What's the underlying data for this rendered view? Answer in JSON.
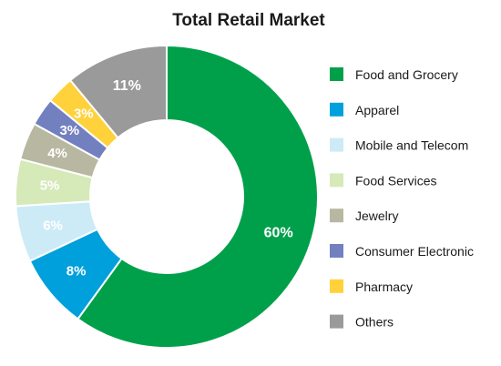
{
  "chart_data": {
    "type": "pie",
    "title": "Total Retail Market",
    "legend_position": "right",
    "slices": [
      {
        "label": "Food and Grocery",
        "value": 60,
        "display": "60%",
        "color": "#00A04B"
      },
      {
        "label": "Apparel",
        "value": 8,
        "display": "8%",
        "color": "#00A0DC"
      },
      {
        "label": "Mobile and Telecom",
        "value": 6,
        "display": "6%",
        "color": "#CDEBF7"
      },
      {
        "label": "Food Services",
        "value": 5,
        "display": "5%",
        "color": "#D6E9B9"
      },
      {
        "label": "Jewelry",
        "value": 4,
        "display": "4%",
        "color": "#B8B8A2"
      },
      {
        "label": "Consumer Electronic",
        "value": 3,
        "display": "3%",
        "color": "#7380C0"
      },
      {
        "label": "Pharmacy",
        "value": 3,
        "display": "3%",
        "color": "#FFD23C"
      },
      {
        "label": "Others",
        "value": 11,
        "display": "11%",
        "color": "#9A9A9A"
      }
    ]
  }
}
